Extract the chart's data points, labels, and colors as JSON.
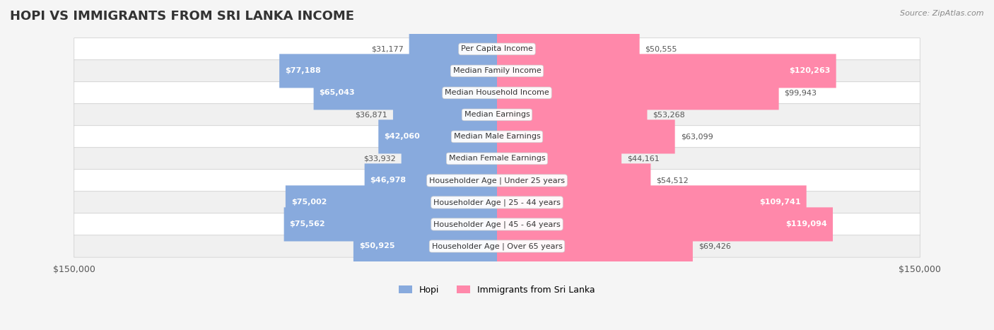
{
  "title": "HOPI VS IMMIGRANTS FROM SRI LANKA INCOME",
  "source": "Source: ZipAtlas.com",
  "categories": [
    "Per Capita Income",
    "Median Family Income",
    "Median Household Income",
    "Median Earnings",
    "Median Male Earnings",
    "Median Female Earnings",
    "Householder Age | Under 25 years",
    "Householder Age | 25 - 44 years",
    "Householder Age | 45 - 64 years",
    "Householder Age | Over 65 years"
  ],
  "hopi_values": [
    31177,
    77188,
    65043,
    36871,
    42060,
    33932,
    46978,
    75002,
    75562,
    50925
  ],
  "sri_lanka_values": [
    50555,
    120263,
    99943,
    53268,
    63099,
    44161,
    54512,
    109741,
    119094,
    69426
  ],
  "hopi_labels": [
    "$31,177",
    "$77,188",
    "$65,043",
    "$36,871",
    "$42,060",
    "$33,932",
    "$46,978",
    "$75,002",
    "$75,562",
    "$50,925"
  ],
  "sri_lanka_labels": [
    "$50,555",
    "$120,263",
    "$99,943",
    "$53,268",
    "$63,099",
    "$44,161",
    "$54,512",
    "$109,741",
    "$119,094",
    "$69,426"
  ],
  "hopi_color": "#88aadd",
  "sri_lanka_color": "#ff88aa",
  "hopi_label_color_normal": "#555555",
  "sri_lanka_label_color_normal": "#555555",
  "hopi_label_color_inside": "#ffffff",
  "sri_lanka_label_color_inside": "#ffffff",
  "bar_height": 0.55,
  "max_value": 150000,
  "background_color": "#f5f5f5",
  "row_bg_colors": [
    "#ffffff",
    "#f0f0f0"
  ],
  "legend_hopi": "Hopi",
  "legend_sri_lanka": "Immigrants from Sri Lanka",
  "x_ticks": [
    -150000,
    150000
  ],
  "x_tick_labels": [
    "$150,000",
    "$150,000"
  ]
}
